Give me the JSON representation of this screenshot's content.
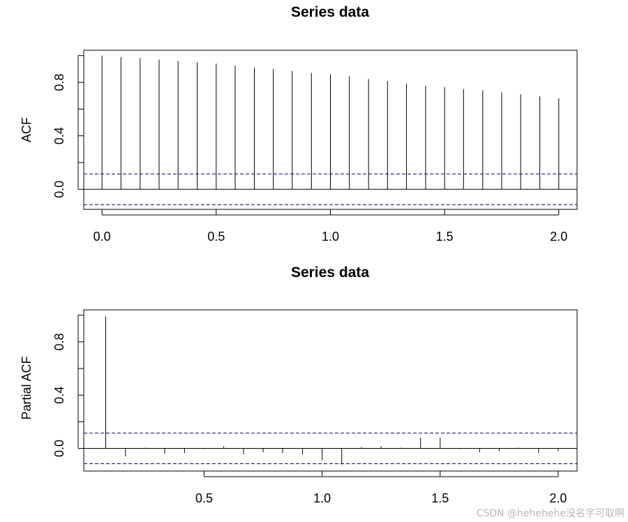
{
  "chart_data": [
    {
      "type": "bar",
      "title": "Series  data",
      "xlabel": "",
      "ylabel": "ACF",
      "xlim": [
        -0.08,
        2.08
      ],
      "ylim": [
        -0.15,
        1.04
      ],
      "x_ticks": [
        "0.0",
        "0.5",
        "1.0",
        "1.5",
        "2.0"
      ],
      "y_ticks": [
        "0.0",
        "0.4",
        "0.8"
      ],
      "conf_limit": 0.115,
      "grid": false,
      "x": [
        0.0,
        0.083,
        0.167,
        0.25,
        0.333,
        0.417,
        0.5,
        0.583,
        0.667,
        0.75,
        0.833,
        0.917,
        1.0,
        1.083,
        1.167,
        1.25,
        1.333,
        1.417,
        1.5,
        1.583,
        1.667,
        1.75,
        1.833,
        1.917,
        2.0
      ],
      "values": [
        1.0,
        0.99,
        0.98,
        0.97,
        0.96,
        0.95,
        0.94,
        0.925,
        0.91,
        0.9,
        0.885,
        0.87,
        0.86,
        0.845,
        0.825,
        0.81,
        0.79,
        0.775,
        0.765,
        0.75,
        0.74,
        0.725,
        0.71,
        0.695,
        0.68
      ]
    },
    {
      "type": "bar",
      "title": "Series  data",
      "xlabel": "",
      "ylabel": "Partial ACF",
      "xlim": [
        -0.01,
        2.08
      ],
      "ylim": [
        -0.17,
        1.04
      ],
      "x_ticks": [
        "0.5",
        "1.0",
        "1.5",
        "2.0"
      ],
      "y_ticks": [
        "0.0",
        "0.4",
        "0.8"
      ],
      "conf_limit": 0.115,
      "grid": false,
      "x": [
        0.083,
        0.167,
        0.25,
        0.333,
        0.417,
        0.5,
        0.583,
        0.667,
        0.75,
        0.833,
        0.917,
        1.0,
        1.083,
        1.167,
        1.25,
        1.333,
        1.417,
        1.5,
        1.583,
        1.667,
        1.75,
        1.833,
        1.917,
        2.0
      ],
      "values": [
        0.99,
        -0.06,
        0.005,
        -0.04,
        -0.035,
        -0.005,
        0.015,
        -0.045,
        -0.03,
        -0.035,
        -0.045,
        -0.09,
        -0.12,
        0.01,
        0.015,
        0.005,
        0.08,
        0.08,
        -0.005,
        -0.03,
        -0.02,
        0.005,
        -0.035,
        -0.02
      ]
    }
  ],
  "watermark": "CSDN @hehehehe没名字可取啊",
  "colors": {
    "bars": "#000000",
    "conf_line": "#00008b",
    "axis": "#000000"
  }
}
